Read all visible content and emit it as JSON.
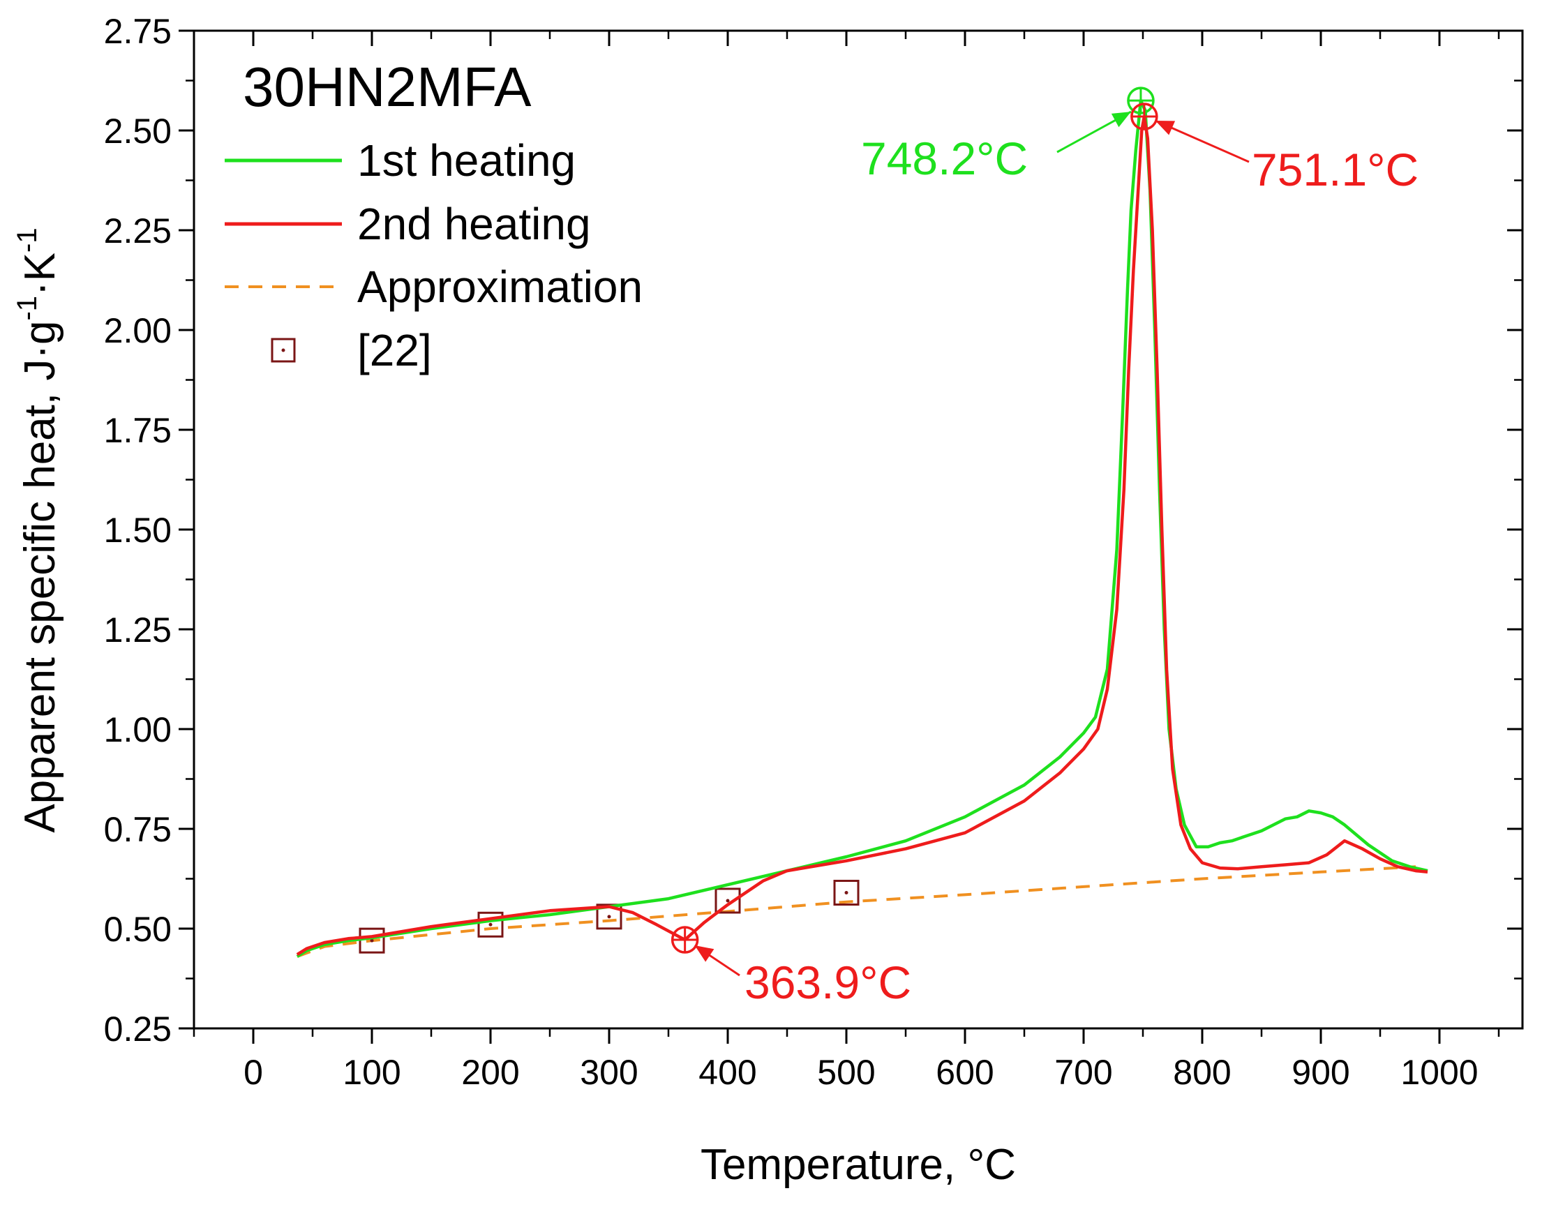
{
  "chart_data": {
    "type": "line",
    "title": "30HN2MFA",
    "xlabel": "Temperature, °C",
    "ylabel": {
      "text": "Apparent specific heat, J·g",
      "sup1": "-1",
      "mid": "·K",
      "sup2": "-1"
    },
    "xlim": [
      -50,
      1070
    ],
    "ylim": [
      0.25,
      2.75
    ],
    "x_ticks": [
      0,
      100,
      200,
      300,
      400,
      500,
      600,
      700,
      800,
      900,
      1000
    ],
    "y_ticks": [
      0.25,
      0.5,
      0.75,
      1.0,
      1.25,
      1.5,
      1.75,
      2.0,
      2.25,
      2.5,
      2.75
    ],
    "y_tick_labels": [
      "0.25",
      "0.50",
      "0.75",
      "1.00",
      "1.25",
      "1.50",
      "1.75",
      "2.00",
      "2.25",
      "2.50",
      "2.75"
    ],
    "grid": false,
    "legend_position": "top-left",
    "series": [
      {
        "name": "1st heating",
        "style": "solid",
        "color": "#1ee01e",
        "points": [
          [
            37,
            0.43
          ],
          [
            45,
            0.445
          ],
          [
            60,
            0.46
          ],
          [
            80,
            0.47
          ],
          [
            100,
            0.477
          ],
          [
            150,
            0.5
          ],
          [
            200,
            0.52
          ],
          [
            250,
            0.535
          ],
          [
            300,
            0.555
          ],
          [
            350,
            0.575
          ],
          [
            400,
            0.61
          ],
          [
            450,
            0.645
          ],
          [
            500,
            0.68
          ],
          [
            550,
            0.72
          ],
          [
            600,
            0.78
          ],
          [
            650,
            0.86
          ],
          [
            680,
            0.93
          ],
          [
            700,
            0.99
          ],
          [
            710,
            1.03
          ],
          [
            720,
            1.15
          ],
          [
            728,
            1.45
          ],
          [
            733,
            1.8
          ],
          [
            737,
            2.1
          ],
          [
            740,
            2.3
          ],
          [
            744,
            2.45
          ],
          [
            748.2,
            2.575
          ],
          [
            752,
            2.55
          ],
          [
            756,
            2.35
          ],
          [
            760,
            2.0
          ],
          [
            764,
            1.6
          ],
          [
            768,
            1.25
          ],
          [
            772,
            1.0
          ],
          [
            778,
            0.85
          ],
          [
            785,
            0.76
          ],
          [
            795,
            0.705
          ],
          [
            805,
            0.705
          ],
          [
            815,
            0.715
          ],
          [
            825,
            0.72
          ],
          [
            835,
            0.73
          ],
          [
            850,
            0.745
          ],
          [
            870,
            0.775
          ],
          [
            880,
            0.78
          ],
          [
            890,
            0.795
          ],
          [
            900,
            0.79
          ],
          [
            910,
            0.78
          ],
          [
            920,
            0.76
          ],
          [
            940,
            0.71
          ],
          [
            960,
            0.67
          ],
          [
            975,
            0.655
          ],
          [
            990,
            0.645
          ]
        ]
      },
      {
        "name": "2nd heating",
        "style": "solid",
        "color": "#ee1c1c",
        "points": [
          [
            37,
            0.435
          ],
          [
            45,
            0.45
          ],
          [
            60,
            0.465
          ],
          [
            80,
            0.475
          ],
          [
            100,
            0.48
          ],
          [
            150,
            0.505
          ],
          [
            200,
            0.525
          ],
          [
            250,
            0.545
          ],
          [
            300,
            0.555
          ],
          [
            320,
            0.54
          ],
          [
            340,
            0.51
          ],
          [
            363.9,
            0.472
          ],
          [
            380,
            0.515
          ],
          [
            400,
            0.56
          ],
          [
            430,
            0.62
          ],
          [
            450,
            0.645
          ],
          [
            500,
            0.67
          ],
          [
            550,
            0.7
          ],
          [
            600,
            0.74
          ],
          [
            650,
            0.82
          ],
          [
            680,
            0.89
          ],
          [
            700,
            0.95
          ],
          [
            712,
            1.0
          ],
          [
            720,
            1.1
          ],
          [
            728,
            1.3
          ],
          [
            734,
            1.6
          ],
          [
            738,
            1.9
          ],
          [
            742,
            2.15
          ],
          [
            746,
            2.35
          ],
          [
            749,
            2.5
          ],
          [
            751.1,
            2.535
          ],
          [
            754,
            2.48
          ],
          [
            758,
            2.25
          ],
          [
            762,
            1.9
          ],
          [
            766,
            1.5
          ],
          [
            770,
            1.15
          ],
          [
            775,
            0.9
          ],
          [
            782,
            0.76
          ],
          [
            790,
            0.7
          ],
          [
            800,
            0.665
          ],
          [
            815,
            0.652
          ],
          [
            830,
            0.65
          ],
          [
            850,
            0.655
          ],
          [
            870,
            0.66
          ],
          [
            890,
            0.665
          ],
          [
            905,
            0.685
          ],
          [
            920,
            0.72
          ],
          [
            935,
            0.7
          ],
          [
            950,
            0.675
          ],
          [
            965,
            0.655
          ],
          [
            980,
            0.645
          ],
          [
            990,
            0.642
          ]
        ]
      },
      {
        "name": "Approximation",
        "style": "dashed",
        "color": "#f09020",
        "points": [
          [
            37,
            0.43
          ],
          [
            60,
            0.455
          ],
          [
            100,
            0.47
          ],
          [
            150,
            0.485
          ],
          [
            200,
            0.5
          ],
          [
            300,
            0.52
          ],
          [
            400,
            0.543
          ],
          [
            500,
            0.567
          ],
          [
            600,
            0.585
          ],
          [
            700,
            0.605
          ],
          [
            800,
            0.625
          ],
          [
            900,
            0.642
          ],
          [
            980,
            0.655
          ]
        ]
      },
      {
        "name": "[22]",
        "style": "markers",
        "color": "#7a1515",
        "points": [
          [
            100,
            0.47
          ],
          [
            200,
            0.51
          ],
          [
            300,
            0.53
          ],
          [
            400,
            0.57
          ],
          [
            500,
            0.59
          ]
        ]
      }
    ],
    "annotations": [
      {
        "text": "748.2°C",
        "color": "#1ee01e",
        "x": 748.2,
        "y": 2.575
      },
      {
        "text": "751.1°C",
        "color": "#ee1c1c",
        "x": 751.1,
        "y": 2.535
      },
      {
        "text": "363.9°C",
        "color": "#ee1c1c",
        "x": 363.9,
        "y": 0.472
      }
    ]
  }
}
